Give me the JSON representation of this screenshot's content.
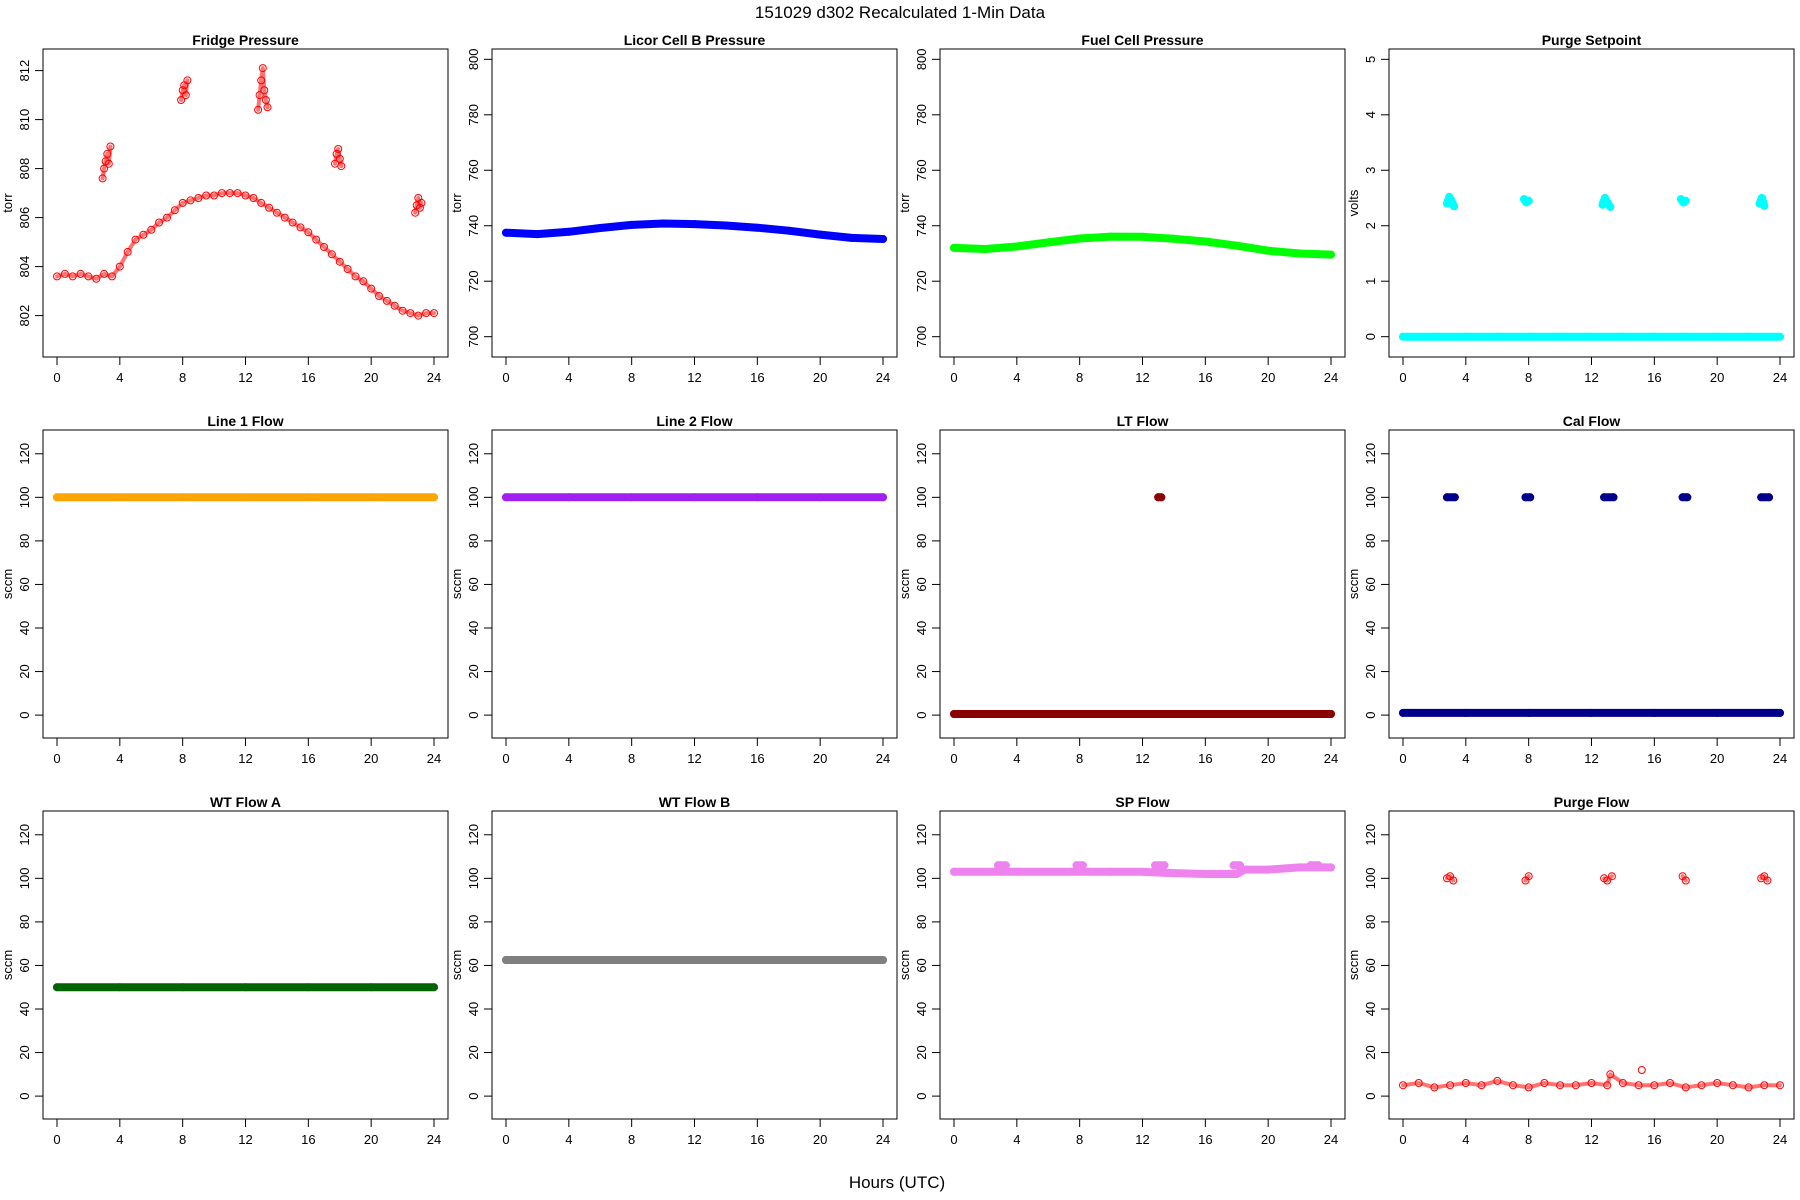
{
  "page": {
    "title": "151029   d302   Recalculated 1-Min Data",
    "xlabel": "Hours (UTC)"
  },
  "chart_data": [
    {
      "type": "scatter",
      "title": "Fridge Pressure",
      "ylabel": "torr",
      "xlim": [
        0,
        24
      ],
      "ylim": [
        800.8,
        812.8
      ],
      "xticks": [
        "0",
        "4",
        "8",
        "12",
        "16",
        "20",
        "24"
      ],
      "yticks": [
        "802",
        "804",
        "806",
        "808",
        "810",
        "812"
      ],
      "color": "#ff0000",
      "marker": "open-circle",
      "series": [
        {
          "x": [
            0,
            0.5,
            1,
            1.5,
            2,
            2.5,
            3,
            3.5,
            4,
            4.5,
            5,
            5.5,
            6,
            6.5,
            7,
            7.5,
            8,
            8.5,
            9,
            9.5,
            10,
            10.5,
            11,
            11.5,
            12,
            12.5,
            13,
            13.5,
            14,
            14.5,
            15,
            15.5,
            16,
            16.5,
            17,
            17.5,
            18,
            18.5,
            19,
            19.5,
            20,
            20.5,
            21,
            21.5,
            22,
            22.5,
            23,
            23.5,
            24
          ],
          "y": [
            803.6,
            803.7,
            803.6,
            803.7,
            803.6,
            803.5,
            803.7,
            803.6,
            804.0,
            804.6,
            805.1,
            805.3,
            805.5,
            805.8,
            806.0,
            806.3,
            806.6,
            806.7,
            806.8,
            806.9,
            806.9,
            807.0,
            807.0,
            807.0,
            806.9,
            806.8,
            806.6,
            806.4,
            806.2,
            806.0,
            805.8,
            805.6,
            805.4,
            805.1,
            804.8,
            804.5,
            804.2,
            803.9,
            803.6,
            803.4,
            803.1,
            802.8,
            802.6,
            802.4,
            802.2,
            802.1,
            802.0,
            802.1,
            802.1
          ]
        },
        {
          "x": [
            2.9,
            3.0,
            3.1,
            3.2,
            3.3,
            3.4
          ],
          "y": [
            807.6,
            808.0,
            808.3,
            808.6,
            808.2,
            808.9
          ]
        },
        {
          "x": [
            7.9,
            8.0,
            8.1,
            8.2,
            8.3
          ],
          "y": [
            810.8,
            811.2,
            811.4,
            811.0,
            811.6
          ]
        },
        {
          "x": [
            12.8,
            12.9,
            13.0,
            13.1,
            13.2,
            13.3,
            13.4
          ],
          "y": [
            810.4,
            811.0,
            811.6,
            812.1,
            811.2,
            810.8,
            810.5
          ]
        },
        {
          "x": [
            17.7,
            17.8,
            17.9,
            18.0,
            18.1
          ],
          "y": [
            808.2,
            808.6,
            808.8,
            808.4,
            808.1
          ]
        },
        {
          "x": [
            22.8,
            22.9,
            23.0,
            23.1,
            23.2
          ],
          "y": [
            806.2,
            806.5,
            806.8,
            806.4,
            806.6
          ]
        }
      ]
    },
    {
      "type": "scatter",
      "title": "Licor Cell B Pressure",
      "ylabel": "torr",
      "xlim": [
        0,
        24
      ],
      "ylim": [
        697,
        803
      ],
      "xticks": [
        "0",
        "4",
        "8",
        "12",
        "16",
        "20",
        "24"
      ],
      "yticks": [
        "700",
        "720",
        "740",
        "760",
        "780",
        "800"
      ],
      "color": "#0000ff",
      "marker": "filled-circle",
      "series": [
        {
          "x": [
            0,
            2,
            4,
            6,
            8,
            10,
            12,
            14,
            16,
            18,
            20,
            22,
            24
          ],
          "y": [
            737.5,
            737.0,
            737.8,
            739.2,
            740.3,
            740.8,
            740.6,
            740.1,
            739.3,
            738.2,
            736.8,
            735.6,
            735.2
          ]
        }
      ]
    },
    {
      "type": "scatter",
      "title": "Fuel Cell Pressure",
      "ylabel": "torr",
      "xlim": [
        0,
        24
      ],
      "ylim": [
        697,
        803
      ],
      "xticks": [
        "0",
        "4",
        "8",
        "12",
        "16",
        "20",
        "24"
      ],
      "yticks": [
        "700",
        "720",
        "740",
        "760",
        "780",
        "800"
      ],
      "color": "#00ff00",
      "marker": "filled-circle",
      "series": [
        {
          "x": [
            0,
            2,
            4,
            6,
            8,
            10,
            12,
            14,
            16,
            18,
            20,
            22,
            24
          ],
          "y": [
            732.0,
            731.6,
            732.5,
            734.0,
            735.4,
            736.1,
            736.0,
            735.3,
            734.3,
            732.8,
            731.0,
            730.0,
            729.6
          ]
        }
      ]
    },
    {
      "type": "scatter",
      "title": "Purge Setpoint",
      "ylabel": "volts",
      "xlim": [
        0,
        24
      ],
      "ylim": [
        -0.15,
        5.15
      ],
      "xticks": [
        "0",
        "4",
        "8",
        "12",
        "16",
        "20",
        "24"
      ],
      "yticks": [
        "0",
        "1",
        "2",
        "3",
        "4",
        "5"
      ],
      "color": "#00ffff",
      "marker": "filled-circle",
      "series": [
        {
          "x": [
            0,
            2,
            4,
            6,
            8,
            10,
            12,
            14,
            16,
            18,
            20,
            22,
            24
          ],
          "y": [
            0,
            0,
            0,
            0,
            0,
            0,
            0,
            0,
            0,
            0,
            0,
            0,
            0
          ]
        },
        {
          "x": [
            2.8,
            2.95,
            3.1,
            3.25
          ],
          "y": [
            2.4,
            2.52,
            2.44,
            2.35
          ]
        },
        {
          "x": [
            7.7,
            7.85,
            8.0
          ],
          "y": [
            2.48,
            2.42,
            2.45
          ]
        },
        {
          "x": [
            12.7,
            12.85,
            13.0,
            13.2
          ],
          "y": [
            2.38,
            2.5,
            2.42,
            2.34
          ]
        },
        {
          "x": [
            17.7,
            17.85,
            18.0
          ],
          "y": [
            2.48,
            2.42,
            2.45
          ]
        },
        {
          "x": [
            22.7,
            22.85,
            23.0
          ],
          "y": [
            2.4,
            2.5,
            2.36
          ]
        }
      ]
    },
    {
      "type": "scatter",
      "title": "Line 1 Flow",
      "ylabel": "sccm",
      "xlim": [
        0,
        24
      ],
      "ylim": [
        -5,
        130
      ],
      "xticks": [
        "0",
        "4",
        "8",
        "12",
        "16",
        "20",
        "24"
      ],
      "yticks": [
        "0",
        "20",
        "40",
        "60",
        "80",
        "100",
        "120"
      ],
      "color": "#ffa500",
      "marker": "filled-circle",
      "series": [
        {
          "x": [
            0,
            4,
            8,
            12,
            16,
            20,
            24
          ],
          "y": [
            100,
            100,
            100,
            100,
            100,
            100,
            100
          ]
        }
      ]
    },
    {
      "type": "scatter",
      "title": "Line 2 Flow",
      "ylabel": "sccm",
      "xlim": [
        0,
        24
      ],
      "ylim": [
        -5,
        130
      ],
      "xticks": [
        "0",
        "4",
        "8",
        "12",
        "16",
        "20",
        "24"
      ],
      "yticks": [
        "0",
        "20",
        "40",
        "60",
        "80",
        "100",
        "120"
      ],
      "color": "#a020f0",
      "marker": "filled-circle",
      "series": [
        {
          "x": [
            0,
            4,
            8,
            12,
            16,
            20,
            24
          ],
          "y": [
            100,
            100,
            100,
            100,
            100,
            100,
            100
          ]
        }
      ]
    },
    {
      "type": "scatter",
      "title": "LT Flow",
      "ylabel": "sccm",
      "xlim": [
        0,
        24
      ],
      "ylim": [
        -5,
        130
      ],
      "xticks": [
        "0",
        "4",
        "8",
        "12",
        "16",
        "20",
        "24"
      ],
      "yticks": [
        "0",
        "20",
        "40",
        "60",
        "80",
        "100",
        "120"
      ],
      "color": "#8b0000",
      "marker": "filled-circle",
      "series": [
        {
          "x": [
            0,
            4,
            8,
            12,
            16,
            20,
            24
          ],
          "y": [
            0.5,
            0.5,
            0.5,
            0.5,
            0.5,
            0.5,
            0.5
          ]
        },
        {
          "x": [
            13.0,
            13.2
          ],
          "y": [
            100,
            100
          ]
        }
      ]
    },
    {
      "type": "scatter",
      "title": "Cal Flow",
      "ylabel": "sccm",
      "xlim": [
        0,
        24
      ],
      "ylim": [
        -5,
        130
      ],
      "xticks": [
        "0",
        "4",
        "8",
        "12",
        "16",
        "20",
        "24"
      ],
      "yticks": [
        "0",
        "20",
        "40",
        "60",
        "80",
        "100",
        "120"
      ],
      "color": "#00008b",
      "marker": "filled-circle",
      "series": [
        {
          "x": [
            0,
            4,
            8,
            12,
            16,
            20,
            24
          ],
          "y": [
            1,
            1,
            1,
            1,
            1,
            1,
            1
          ]
        },
        {
          "x": [
            2.8,
            3.3
          ],
          "y": [
            100,
            100
          ]
        },
        {
          "x": [
            7.8,
            8.1
          ],
          "y": [
            100,
            100
          ]
        },
        {
          "x": [
            12.8,
            13.4
          ],
          "y": [
            100,
            100
          ]
        },
        {
          "x": [
            17.8,
            18.1
          ],
          "y": [
            100,
            100
          ]
        },
        {
          "x": [
            22.8,
            23.3
          ],
          "y": [
            100,
            100
          ]
        }
      ]
    },
    {
      "type": "scatter",
      "title": "WT Flow A",
      "ylabel": "sccm",
      "xlim": [
        0,
        24
      ],
      "ylim": [
        -5,
        130
      ],
      "xticks": [
        "0",
        "4",
        "8",
        "12",
        "16",
        "20",
        "24"
      ],
      "yticks": [
        "0",
        "20",
        "40",
        "60",
        "80",
        "100",
        "120"
      ],
      "color": "#006400",
      "marker": "filled-circle",
      "series": [
        {
          "x": [
            0,
            4,
            8,
            12,
            16,
            20,
            24
          ],
          "y": [
            50,
            50,
            50,
            50,
            50,
            50,
            50
          ]
        }
      ]
    },
    {
      "type": "scatter",
      "title": "WT Flow B",
      "ylabel": "sccm",
      "xlim": [
        0,
        24
      ],
      "ylim": [
        -5,
        130
      ],
      "xticks": [
        "0",
        "4",
        "8",
        "12",
        "16",
        "20",
        "24"
      ],
      "yticks": [
        "0",
        "20",
        "40",
        "60",
        "80",
        "100",
        "120"
      ],
      "color": "#808080",
      "marker": "filled-circle",
      "series": [
        {
          "x": [
            0,
            4,
            8,
            12,
            16,
            20,
            24
          ],
          "y": [
            62.5,
            62.5,
            62.5,
            62.5,
            62.5,
            62.5,
            62.5
          ]
        }
      ]
    },
    {
      "type": "scatter",
      "title": "SP Flow",
      "ylabel": "sccm",
      "xlim": [
        0,
        24
      ],
      "ylim": [
        -5,
        130
      ],
      "xticks": [
        "0",
        "4",
        "8",
        "12",
        "16",
        "20",
        "24"
      ],
      "yticks": [
        "0",
        "20",
        "40",
        "60",
        "80",
        "100",
        "120"
      ],
      "color": "#ee82ee",
      "marker": "filled-circle",
      "series": [
        {
          "x": [
            0,
            3,
            4,
            8,
            10,
            12,
            13.5,
            16,
            18,
            18.5,
            20,
            22,
            24
          ],
          "y": [
            103,
            103,
            103,
            103,
            103,
            103,
            102.5,
            102,
            102,
            104,
            104,
            105,
            105
          ]
        },
        {
          "x": [
            2.8,
            3.3
          ],
          "y": [
            106,
            106
          ]
        },
        {
          "x": [
            7.8,
            8.2
          ],
          "y": [
            106,
            106
          ]
        },
        {
          "x": [
            12.8,
            13.4
          ],
          "y": [
            106,
            106
          ]
        },
        {
          "x": [
            17.8,
            18.2
          ],
          "y": [
            106,
            106
          ]
        },
        {
          "x": [
            22.7,
            23.2
          ],
          "y": [
            106,
            106
          ]
        }
      ]
    },
    {
      "type": "scatter",
      "title": "Purge Flow",
      "ylabel": "sccm",
      "xlim": [
        0,
        24
      ],
      "ylim": [
        -5,
        130
      ],
      "xticks": [
        "0",
        "4",
        "8",
        "12",
        "16",
        "20",
        "24"
      ],
      "yticks": [
        "0",
        "20",
        "40",
        "60",
        "80",
        "100",
        "120"
      ],
      "color": "#ff0000",
      "marker": "open-circle",
      "series": [
        {
          "x": [
            0,
            1,
            2,
            3,
            4,
            5,
            6,
            7,
            8,
            9,
            10,
            11,
            12,
            13,
            13.2,
            14,
            15,
            16,
            17,
            18,
            19,
            20,
            21,
            22,
            23,
            24
          ],
          "y": [
            5,
            6,
            4,
            5,
            6,
            5,
            7,
            5,
            4,
            6,
            5,
            5,
            6,
            5,
            10,
            6,
            5,
            5,
            6,
            4,
            5,
            6,
            5,
            4,
            5,
            5
          ]
        },
        {
          "x": [
            15.2
          ],
          "y": [
            12
          ]
        },
        {
          "x": [
            2.8,
            3.0,
            3.2
          ],
          "y": [
            100,
            101,
            99
          ]
        },
        {
          "x": [
            7.8,
            8.0
          ],
          "y": [
            99,
            101
          ]
        },
        {
          "x": [
            12.8,
            13.0,
            13.3
          ],
          "y": [
            100,
            99,
            101
          ]
        },
        {
          "x": [
            17.8,
            18.0
          ],
          "y": [
            101,
            99
          ]
        },
        {
          "x": [
            22.8,
            23.0,
            23.2
          ],
          "y": [
            100,
            101,
            99
          ]
        }
      ]
    }
  ]
}
